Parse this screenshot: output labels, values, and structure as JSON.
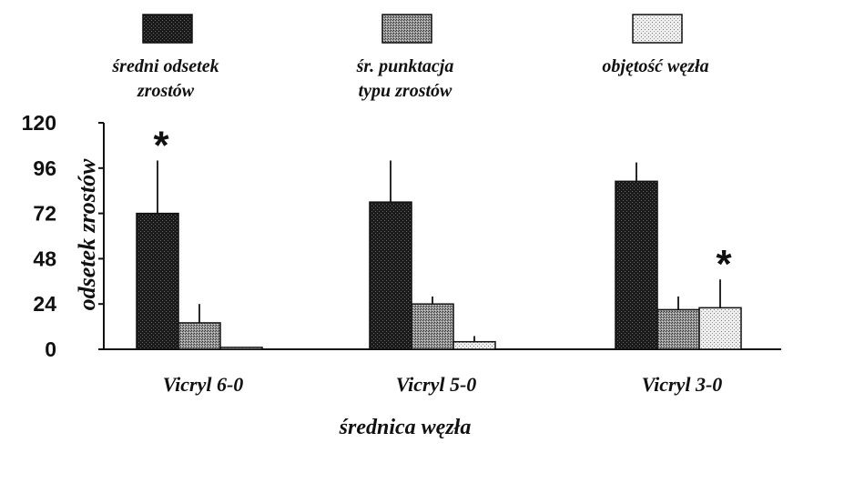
{
  "chart_data": {
    "type": "bar",
    "categories": [
      "Vicryl 6-0",
      "Vicryl 5-0",
      "Vicryl 3-0"
    ],
    "series": [
      {
        "name_lines": [
          "średni odsetek",
          "zrostów"
        ],
        "values": [
          72,
          78,
          89
        ],
        "errors": [
          28,
          22,
          10
        ],
        "color": "#222222"
      },
      {
        "name_lines": [
          "śr. punktacja",
          "typu zrostów"
        ],
        "values": [
          14,
          24,
          21
        ],
        "errors": [
          10,
          4,
          7
        ],
        "color": "#8a8a8a"
      },
      {
        "name_lines": [
          "objętość węzła"
        ],
        "values": [
          1,
          4,
          22
        ],
        "errors": [
          0,
          3,
          15
        ],
        "color": "#d4d4d4"
      }
    ],
    "ylabel": "odsetek zrostów",
    "xlabel": "średnica węzła",
    "yticks": [
      0,
      24,
      48,
      72,
      96,
      120
    ],
    "ylim": [
      0,
      120
    ],
    "significance_marks": [
      {
        "category": 0,
        "series": 0,
        "symbol": "*"
      },
      {
        "category": 2,
        "series": 2,
        "symbol": "*"
      }
    ],
    "grid": false,
    "legend_position": "top"
  }
}
